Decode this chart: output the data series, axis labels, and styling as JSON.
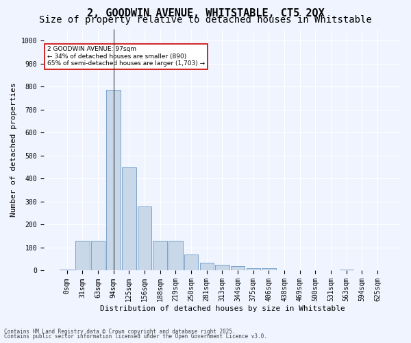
{
  "title1": "2, GOODWIN AVENUE, WHITSTABLE, CT5 2QX",
  "title2": "Size of property relative to detached houses in Whitstable",
  "xlabel": "Distribution of detached houses by size in Whitstable",
  "ylabel": "Number of detached properties",
  "categories": [
    "0sqm",
    "31sqm",
    "63sqm",
    "94sqm",
    "125sqm",
    "156sqm",
    "188sqm",
    "219sqm",
    "250sqm",
    "281sqm",
    "313sqm",
    "344sqm",
    "375sqm",
    "406sqm",
    "438sqm",
    "469sqm",
    "500sqm",
    "531sqm",
    "563sqm",
    "594sqm",
    "625sqm"
  ],
  "values": [
    5,
    130,
    130,
    785,
    450,
    280,
    130,
    130,
    70,
    35,
    25,
    20,
    10,
    10,
    0,
    0,
    0,
    0,
    5,
    0,
    0
  ],
  "bar_color": "#c8d8e8",
  "bar_edge_color": "#5588bb",
  "highlight_bar_index": 3,
  "highlight_line_color": "#333333",
  "annotation_text": "2 GOODWIN AVENUE: 97sqm\n← 34% of detached houses are smaller (890)\n65% of semi-detached houses are larger (1,703) →",
  "annotation_box_color": "#ffffff",
  "annotation_box_edge_color": "#cc0000",
  "ylim": [
    0,
    1050
  ],
  "yticks": [
    0,
    100,
    200,
    300,
    400,
    500,
    600,
    700,
    800,
    900,
    1000
  ],
  "footnote1": "Contains HM Land Registry data © Crown copyright and database right 2025.",
  "footnote2": "Contains public sector information licensed under the Open Government Licence v3.0.",
  "bg_color": "#f0f4ff",
  "grid_color": "#ffffff",
  "title1_fontsize": 11,
  "title2_fontsize": 10,
  "axis_fontsize": 8,
  "tick_fontsize": 7
}
